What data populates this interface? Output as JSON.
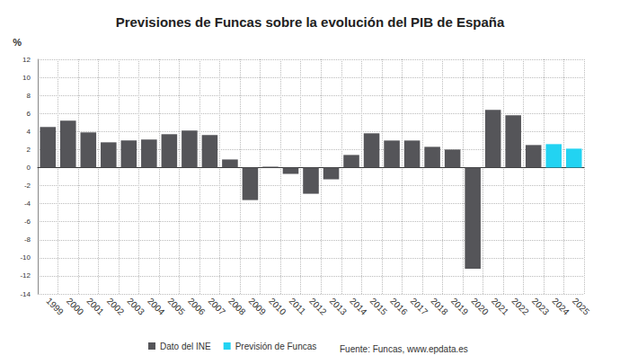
{
  "chart_data": {
    "type": "bar",
    "title": "Previsiones de Funcas sobre la evolución del PIB de España",
    "ylabel": "%",
    "categories": [
      "1999",
      "2000",
      "2001",
      "2002",
      "2003",
      "2004",
      "2005",
      "2006",
      "2007",
      "2008",
      "2009",
      "2010",
      "2011",
      "2012",
      "2013",
      "2014",
      "2015",
      "2016",
      "2017",
      "2018",
      "2019",
      "2020",
      "2021",
      "2022",
      "2023",
      "2024",
      "2025"
    ],
    "series": [
      {
        "name": "Dato del INE",
        "color": "#555559",
        "values": [
          4.5,
          5.2,
          3.9,
          2.8,
          3.0,
          3.1,
          3.7,
          4.1,
          3.6,
          0.9,
          -3.6,
          0.1,
          -0.7,
          -2.9,
          -1.3,
          1.4,
          3.8,
          3.0,
          3.0,
          2.3,
          2.0,
          -11.2,
          6.4,
          5.8,
          2.5,
          null,
          null
        ]
      },
      {
        "name": "Previsión de Funcas",
        "color": "#22d3f2",
        "values": [
          null,
          null,
          null,
          null,
          null,
          null,
          null,
          null,
          null,
          null,
          null,
          null,
          null,
          null,
          null,
          null,
          null,
          null,
          null,
          null,
          null,
          null,
          null,
          null,
          null,
          2.6,
          2.1
        ]
      }
    ],
    "ylim": [
      -14,
      12
    ],
    "yticks": [
      -14,
      -12,
      -10,
      -8,
      -6,
      -4,
      -2,
      0,
      2,
      4,
      6,
      8,
      10,
      12
    ],
    "grid": true,
    "legend": "bottom",
    "annotations": [
      "Fuente: Funcas, www.epdata.es"
    ]
  }
}
